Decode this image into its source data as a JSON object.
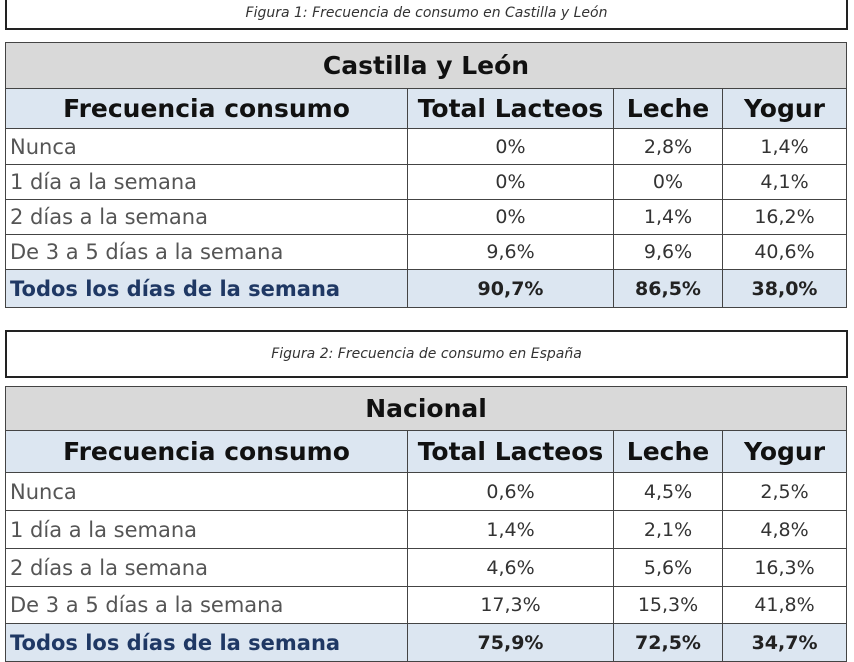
{
  "figure1": {
    "caption": "Figura 1: Frecuencia de consumo en Castilla y León"
  },
  "table1": {
    "title": "Castilla y León",
    "headers": [
      "Frecuencia consumo",
      "Total Lacteos",
      "Leche",
      "Yogur"
    ],
    "rows": [
      [
        "Nunca",
        "0%",
        "2,8%",
        "1,4%"
      ],
      [
        "1 día a la semana",
        "0%",
        "0%",
        "4,1%"
      ],
      [
        "2 días a la semana",
        "0%",
        "1,4%",
        "16,2%"
      ],
      [
        "De 3 a 5 días a la semana",
        "9,6%",
        "9,6%",
        "40,6%"
      ],
      [
        "Todos los días de la semana",
        "90,7%",
        "86,5%",
        "38,0%"
      ]
    ]
  },
  "figure2": {
    "caption": "Figura 2: Frecuencia de consumo en España"
  },
  "table2": {
    "title": "Nacional",
    "headers": [
      "Frecuencia consumo",
      "Total Lacteos",
      "Leche",
      "Yogur"
    ],
    "rows": [
      [
        "Nunca",
        "0,6%",
        "4,5%",
        "2,5%"
      ],
      [
        "1 día a la semana",
        "1,4%",
        "2,1%",
        "4,8%"
      ],
      [
        "2 días a la semana",
        "4,6%",
        "5,6%",
        "16,3%"
      ],
      [
        "De 3 a 5 días a la semana",
        "17,3%",
        "15,3%",
        "41,8%"
      ],
      [
        "Todos los días de la semana",
        "75,9%",
        "72,5%",
        "34,7%"
      ]
    ]
  }
}
